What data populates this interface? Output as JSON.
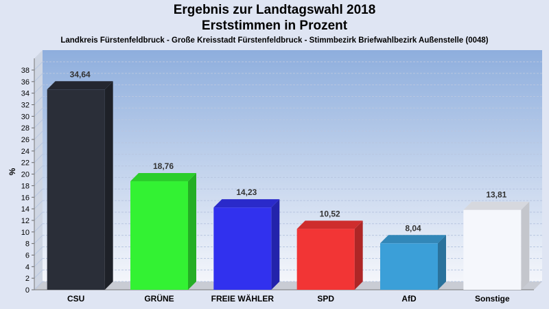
{
  "title": "Ergebnis zur Landtagswahl 2018",
  "title_line2": "Erststimmen in Prozent",
  "subtitle": "Landkreis Fürstenfeldbruck - Große Kreisstadt Fürstenfeldbruck - Stimmbezirk Briefwahlbezirk Außenstelle (0048)",
  "chart_data": {
    "type": "bar",
    "title": "Ergebnis zur Landtagswahl 2018",
    "subtitle": "Erststimmen in Prozent",
    "categories": [
      "CSU",
      "GRÜNE",
      "FREIE WÄHLER",
      "SPD",
      "AfD",
      "Sonstige"
    ],
    "values": [
      34.64,
      18.76,
      14.23,
      10.52,
      8.04,
      13.81
    ],
    "value_labels": [
      "34,64",
      "18,76",
      "14,23",
      "10,52",
      "8,04",
      "13,81"
    ],
    "colors": [
      "#2a2e38",
      "#33f233",
      "#3131ee",
      "#f23535",
      "#3b9fd8",
      "#f5f7fc"
    ],
    "ylabel": "%",
    "xlabel": "",
    "ylim": [
      0,
      38
    ],
    "yticks": [
      0,
      2,
      4,
      6,
      8,
      10,
      12,
      14,
      16,
      18,
      20,
      22,
      24,
      26,
      28,
      30,
      32,
      34,
      36,
      38
    ],
    "grid": true,
    "legend": "none"
  }
}
